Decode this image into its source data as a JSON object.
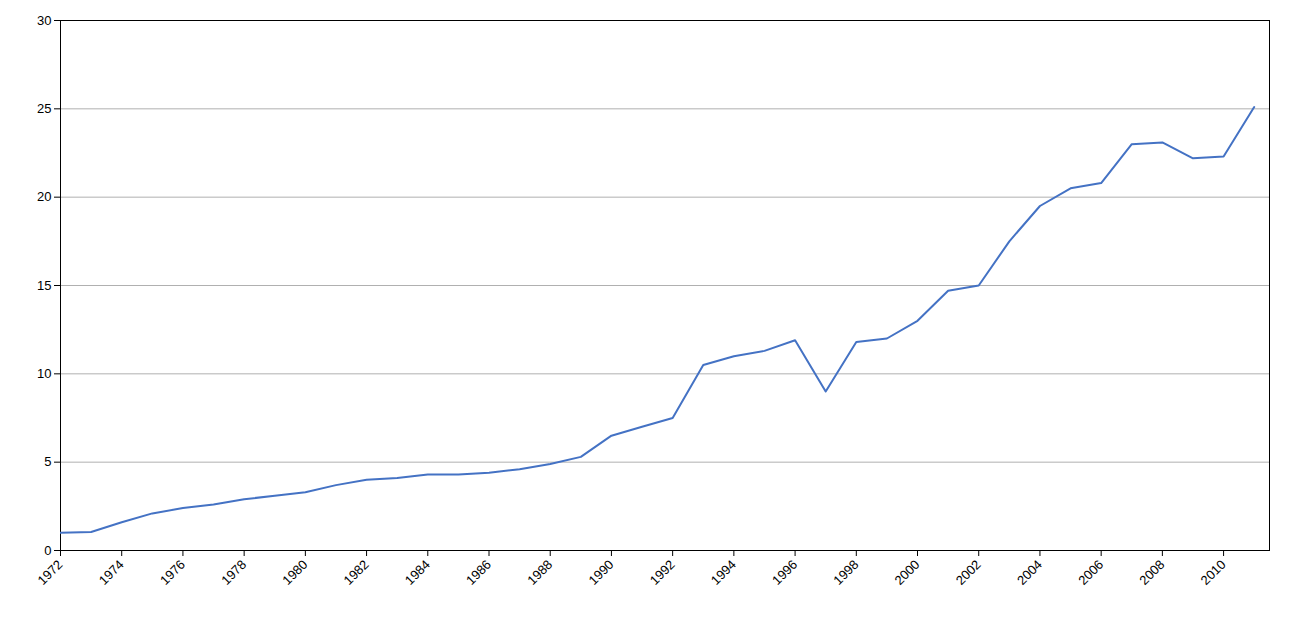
{
  "chart_data": {
    "type": "line",
    "x": [
      1972,
      1973,
      1974,
      1975,
      1976,
      1977,
      1978,
      1979,
      1980,
      1981,
      1982,
      1983,
      1984,
      1985,
      1986,
      1987,
      1988,
      1989,
      1990,
      1991,
      1992,
      1993,
      1994,
      1995,
      1996,
      1997,
      1998,
      1999,
      2000,
      2001,
      2002,
      2003,
      2004,
      2005,
      2006,
      2007,
      2008,
      2009,
      2010,
      2011
    ],
    "values": [
      1.0,
      1.05,
      1.6,
      2.1,
      2.4,
      2.6,
      2.9,
      3.1,
      3.3,
      3.7,
      4.0,
      4.1,
      4.3,
      4.3,
      4.4,
      4.6,
      4.9,
      5.3,
      6.5,
      7.0,
      7.5,
      10.5,
      11.0,
      11.3,
      11.9,
      9.0,
      11.8,
      12.0,
      13.0,
      14.7,
      15.0,
      17.5,
      19.5,
      20.5,
      20.8,
      23.0,
      23.1,
      22.2,
      22.3,
      25.1
    ],
    "color": "#4472C4",
    "xlim": [
      1972,
      2011.5
    ],
    "xticks": [
      1972,
      1974,
      1976,
      1978,
      1980,
      1982,
      1984,
      1986,
      1988,
      1990,
      1992,
      1994,
      1996,
      1998,
      2000,
      2002,
      2004,
      2006,
      2008,
      2010
    ],
    "ylim": [
      0,
      30
    ],
    "yticks": [
      0,
      5,
      10,
      15,
      20,
      25,
      30
    ],
    "grid": "y"
  }
}
